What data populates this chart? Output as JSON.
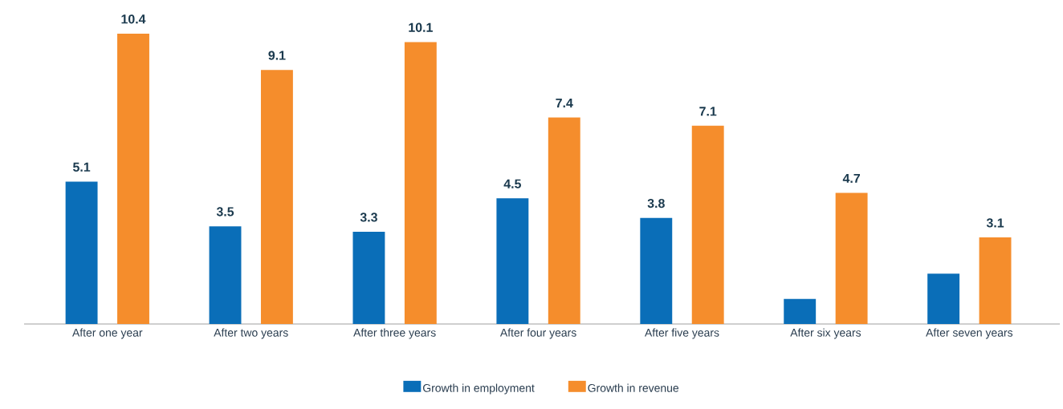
{
  "chart_data": {
    "type": "bar",
    "categories": [
      "After one year",
      "After two years",
      "After three years",
      "After four years",
      "After five years",
      "After six years",
      "After seven years"
    ],
    "series": [
      {
        "name": "Growth in employment",
        "color": "#0a6eb8",
        "values": [
          5.1,
          3.5,
          3.3,
          4.5,
          3.8,
          0.9,
          1.8
        ],
        "value_labels": [
          "5.1",
          "3.5",
          "3.3",
          "4.5",
          "3.8",
          null,
          null
        ]
      },
      {
        "name": "Growth in revenue",
        "color": "#f58d2c",
        "values": [
          10.4,
          9.1,
          10.1,
          7.4,
          7.1,
          4.7,
          3.1
        ],
        "value_labels": [
          "10.4",
          "9.1",
          "10.1",
          "7.4",
          "7.1",
          "4.7",
          "3.1"
        ]
      }
    ],
    "legend": "bottom"
  }
}
